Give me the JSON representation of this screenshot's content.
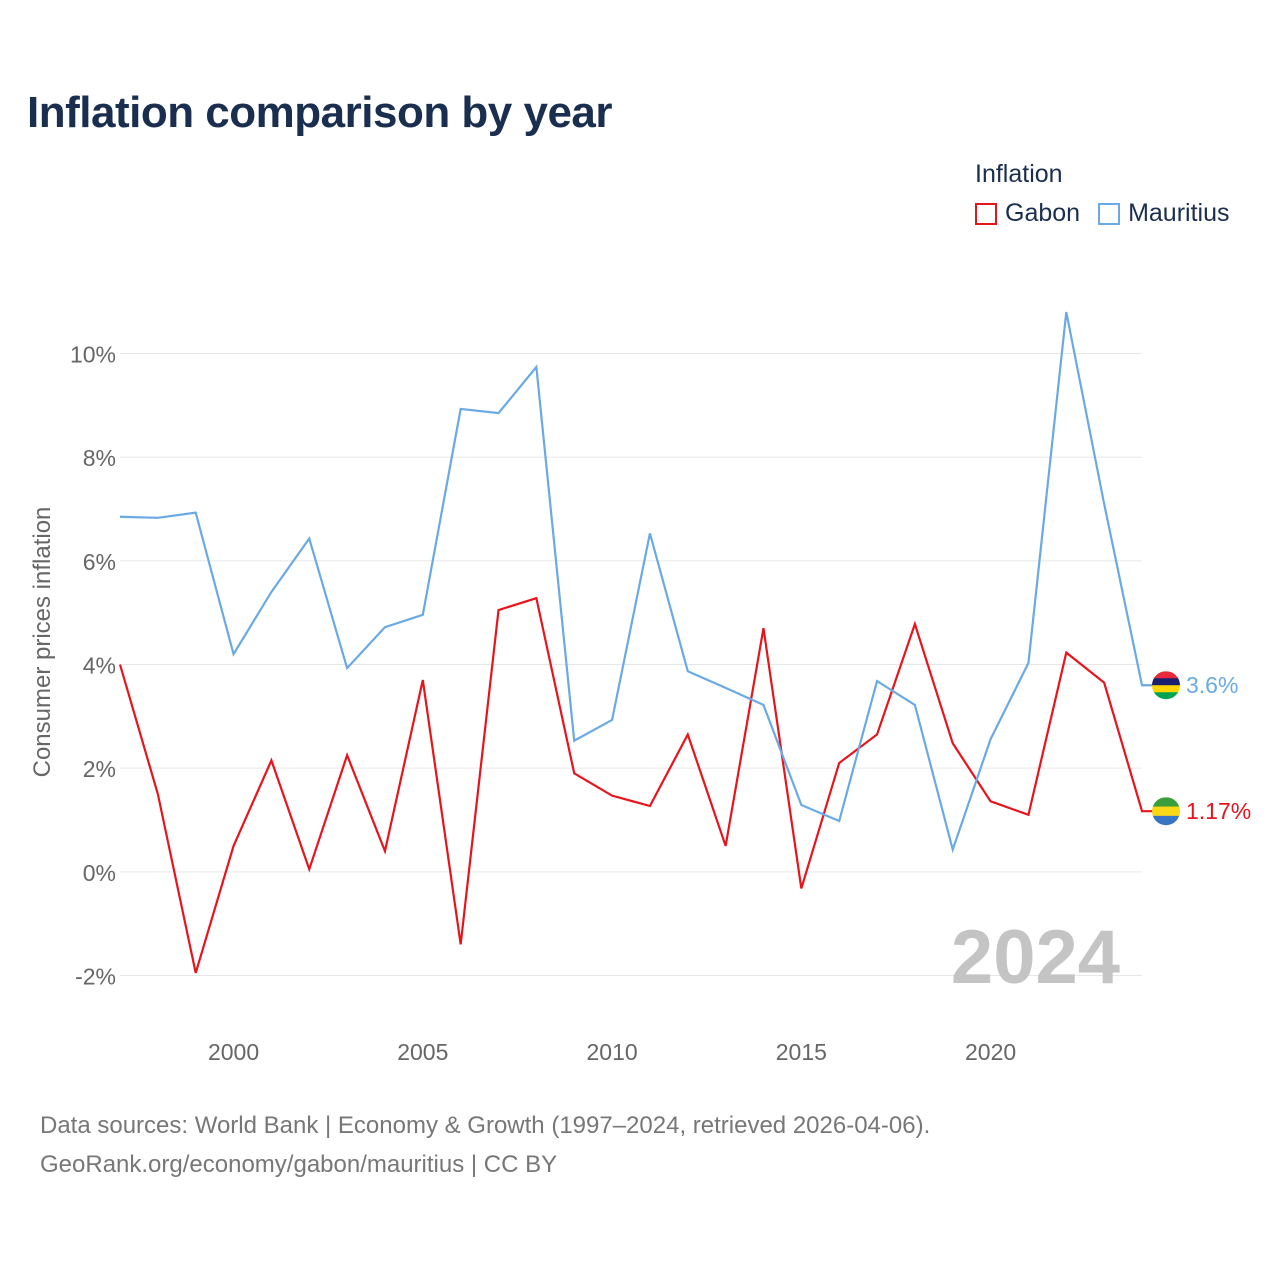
{
  "title": "Inflation comparison by year",
  "legend": {
    "title": "Inflation",
    "items": [
      {
        "label": "Gabon",
        "color": "#e8141c"
      },
      {
        "label": "Mauritius",
        "color": "#6aaae4"
      }
    ]
  },
  "chart_data": {
    "type": "line",
    "title": "Inflation comparison by year",
    "xlabel": "",
    "ylabel": "Consumer prices inflation",
    "xlim": [
      1997,
      2024
    ],
    "ylim": [
      -2,
      10
    ],
    "x_ticks": [
      2000,
      2005,
      2010,
      2015,
      2020
    ],
    "y_ticks": [
      -2,
      0,
      2,
      4,
      6,
      8,
      10
    ],
    "y_tick_labels": [
      "-2%",
      "0%",
      "2%",
      "4%",
      "6%",
      "8%",
      "10%"
    ],
    "grid": true,
    "watermark_year": "2024",
    "x": [
      1997,
      1998,
      1999,
      2000,
      2001,
      2002,
      2003,
      2004,
      2005,
      2006,
      2007,
      2008,
      2009,
      2010,
      2011,
      2012,
      2013,
      2014,
      2015,
      2016,
      2017,
      2018,
      2019,
      2020,
      2021,
      2022,
      2023,
      2024
    ],
    "series": [
      {
        "name": "Gabon",
        "color": "#e8141c",
        "values": [
          4.0,
          1.5,
          -1.95,
          0.5,
          2.15,
          0.05,
          2.25,
          0.4,
          3.7,
          -1.4,
          5.05,
          5.28,
          1.9,
          1.47,
          1.27,
          2.65,
          0.5,
          4.7,
          -0.32,
          2.1,
          2.65,
          4.78,
          2.48,
          1.36,
          1.1,
          4.23,
          3.65,
          1.17
        ],
        "end_label": "1.17%",
        "flag": "gabon"
      },
      {
        "name": "Mauritius",
        "color": "#6aaae4",
        "values": [
          6.85,
          6.83,
          6.93,
          4.2,
          5.4,
          6.43,
          3.93,
          4.72,
          4.96,
          8.93,
          8.85,
          9.74,
          2.53,
          2.93,
          6.53,
          3.87,
          3.55,
          3.22,
          1.29,
          0.98,
          3.68,
          3.22,
          0.43,
          2.56,
          4.03,
          10.8,
          7.1,
          3.6
        ],
        "end_label": "3.6%",
        "flag": "mauritius"
      }
    ]
  },
  "footer": {
    "line1": "Data sources: World Bank | Economy & Growth (1997–2024, retrieved 2026-04-06).",
    "line2": "GeoRank.org/economy/gabon/mauritius | CC BY"
  }
}
